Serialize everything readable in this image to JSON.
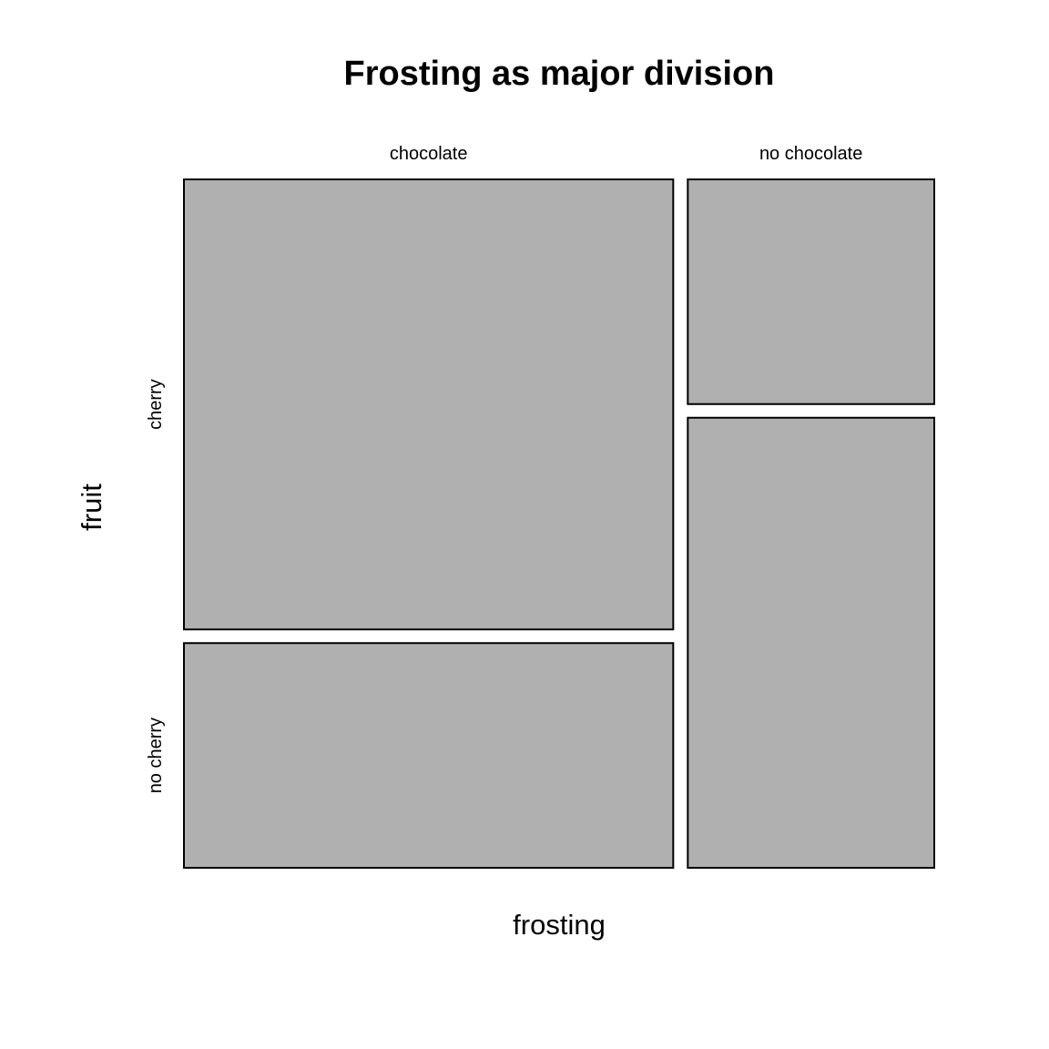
{
  "chart_data": {
    "type": "mosaic",
    "title": "Frosting as major division",
    "xlabel": "frosting",
    "ylabel": "fruit",
    "x_categories": [
      "chocolate",
      "no chocolate"
    ],
    "y_categories": [
      "cherry",
      "no cherry"
    ],
    "column_proportions": [
      0.665,
      0.335
    ],
    "cells": [
      {
        "x": "chocolate",
        "y": "cherry",
        "proportion_within_column": 0.667
      },
      {
        "x": "chocolate",
        "y": "no cherry",
        "proportion_within_column": 0.333
      },
      {
        "x": "no chocolate",
        "y": "cherry",
        "proportion_within_column": 0.333
      },
      {
        "x": "no chocolate",
        "y": "no cherry",
        "proportion_within_column": 0.667
      }
    ],
    "colors": {
      "tile_fill": "#b0b0b0",
      "tile_stroke": "#000000",
      "background": "#ffffff"
    },
    "grid": false,
    "legend": "none"
  }
}
